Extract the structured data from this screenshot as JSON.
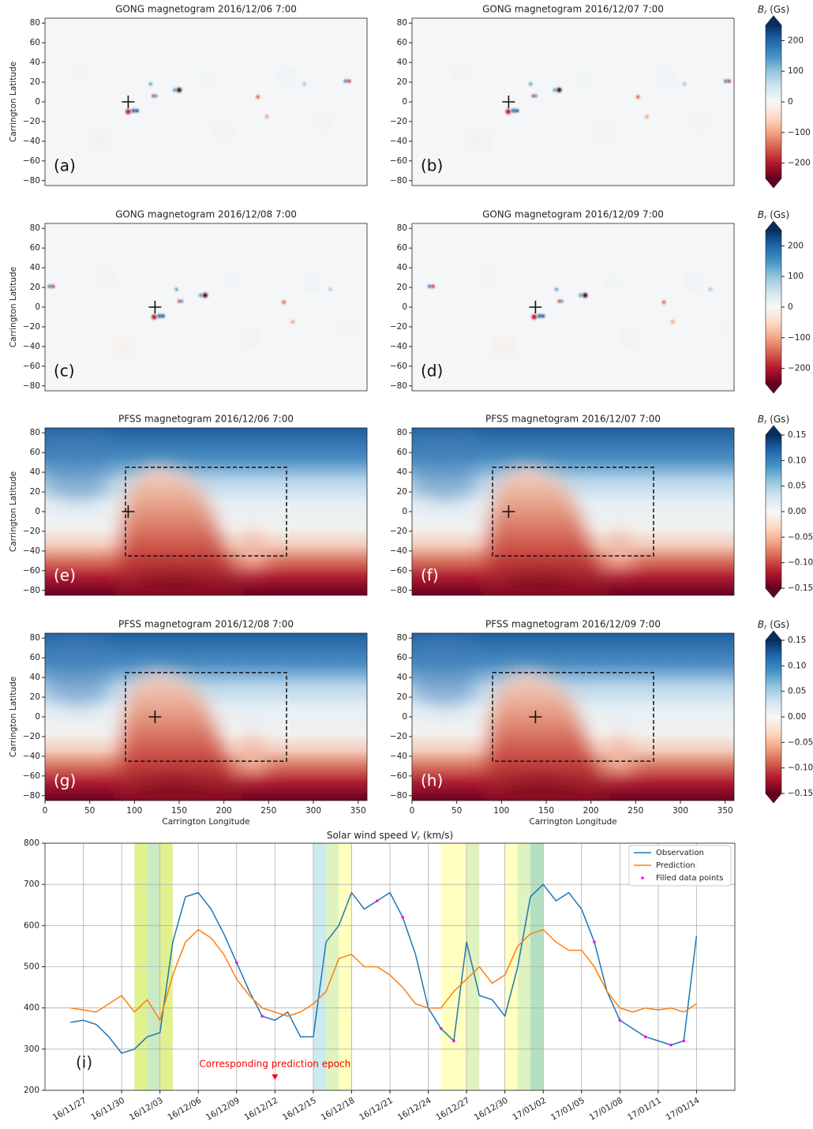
{
  "chart_data": [
    {
      "type": "heatmap",
      "map": "gong",
      "title": "GONG magnetogram 2016/12/06 7:00",
      "panel_label": "(a)",
      "ylabel": "Carrington Latitude",
      "xlim": [
        0,
        360
      ],
      "ylim": [
        -85,
        85
      ],
      "yticks": [
        {
          "value": -80,
          "label": "−80"
        },
        {
          "value": -60,
          "label": "−60"
        },
        {
          "value": -40,
          "label": "−40"
        },
        {
          "value": -20,
          "label": "−20"
        },
        0,
        20,
        40,
        60,
        80
      ],
      "marker": {
        "x": 93,
        "y": 0
      }
    },
    {
      "type": "heatmap",
      "map": "gong",
      "title": "GONG magnetogram 2016/12/07 7:00",
      "panel_label": "(b)",
      "xlim": [
        0,
        360
      ],
      "ylim": [
        -85,
        85
      ],
      "yticks": [
        {
          "value": -80,
          "label": "−80"
        },
        {
          "value": -60,
          "label": "−60"
        },
        {
          "value": -40,
          "label": "−40"
        },
        {
          "value": -20,
          "label": "−20"
        },
        0,
        20,
        40,
        60,
        80
      ],
      "marker": {
        "x": 108,
        "y": 0
      },
      "colorbar": {
        "label": [
          "B",
          "r",
          " (Gs)"
        ],
        "lim": [
          -250,
          250
        ],
        "ticks": [
          {
            "value": -200,
            "label": "−200"
          },
          {
            "value": -100,
            "label": "−100"
          },
          0,
          100,
          200
        ]
      }
    },
    {
      "type": "heatmap",
      "map": "gong",
      "title": "GONG magnetogram 2016/12/08 7:00",
      "panel_label": "(c)",
      "ylabel": "Carrington Latitude",
      "xlim": [
        0,
        360
      ],
      "ylim": [
        -85,
        85
      ],
      "yticks": [
        {
          "value": -80,
          "label": "−80"
        },
        {
          "value": -60,
          "label": "−60"
        },
        {
          "value": -40,
          "label": "−40"
        },
        {
          "value": -20,
          "label": "−20"
        },
        0,
        20,
        40,
        60,
        80
      ],
      "marker": {
        "x": 123,
        "y": 0
      }
    },
    {
      "type": "heatmap",
      "map": "gong",
      "title": "GONG magnetogram 2016/12/09 7:00",
      "panel_label": "(d)",
      "xlim": [
        0,
        360
      ],
      "ylim": [
        -85,
        85
      ],
      "yticks": [
        {
          "value": -80,
          "label": "−80"
        },
        {
          "value": -60,
          "label": "−60"
        },
        {
          "value": -40,
          "label": "−40"
        },
        {
          "value": -20,
          "label": "−20"
        },
        0,
        20,
        40,
        60,
        80
      ],
      "marker": {
        "x": 138,
        "y": 0
      },
      "colorbar": {
        "label": [
          "B",
          "r",
          " (Gs)"
        ],
        "lim": [
          -250,
          250
        ],
        "ticks": [
          {
            "value": -200,
            "label": "−200"
          },
          {
            "value": -100,
            "label": "−100"
          },
          0,
          100,
          200
        ]
      }
    },
    {
      "type": "heatmap",
      "map": "pfss",
      "title": "PFSS magnetogram 2016/12/06 7:00",
      "panel_label": "(e)",
      "ylabel": "Carrington Latitude",
      "xlim": [
        0,
        360
      ],
      "ylim": [
        -85,
        85
      ],
      "yticks": [
        {
          "value": -80,
          "label": "−80"
        },
        {
          "value": -60,
          "label": "−60"
        },
        {
          "value": -40,
          "label": "−40"
        },
        {
          "value": -20,
          "label": "−20"
        },
        0,
        20,
        40,
        60,
        80
      ],
      "marker": {
        "x": 93,
        "y": 0
      },
      "box": {
        "x": [
          90,
          270
        ],
        "y": [
          -45,
          45
        ]
      }
    },
    {
      "type": "heatmap",
      "map": "pfss",
      "title": "PFSS magnetogram 2016/12/07 7:00",
      "panel_label": "(f)",
      "xlim": [
        0,
        360
      ],
      "ylim": [
        -85,
        85
      ],
      "yticks": [
        {
          "value": -80,
          "label": "−80"
        },
        {
          "value": -60,
          "label": "−60"
        },
        {
          "value": -40,
          "label": "−40"
        },
        {
          "value": -20,
          "label": "−20"
        },
        0,
        20,
        40,
        60,
        80
      ],
      "marker": {
        "x": 108,
        "y": 0
      },
      "box": {
        "x": [
          90,
          270
        ],
        "y": [
          -45,
          45
        ]
      },
      "colorbar": {
        "label": [
          "B",
          "r",
          " (Gs)"
        ],
        "lim": [
          -0.15,
          0.15
        ],
        "ticks": [
          {
            "value": -0.15,
            "label": "−0.15"
          },
          {
            "value": -0.1,
            "label": "−0.10"
          },
          {
            "value": -0.05,
            "label": "−0.05"
          },
          {
            "value": 0,
            "label": "0.00"
          },
          0.05,
          {
            "value": 0.1,
            "label": "0.10"
          },
          0.15
        ]
      }
    },
    {
      "type": "heatmap",
      "map": "pfss",
      "title": "PFSS magnetogram 2016/12/08 7:00",
      "panel_label": "(g)",
      "ylabel": "Carrington Latitude",
      "xlabel": "Carrington Longitude",
      "xlim": [
        0,
        360
      ],
      "ylim": [
        -85,
        85
      ],
      "xticks": [
        0,
        50,
        100,
        150,
        200,
        250,
        300,
        350
      ],
      "yticks": [
        {
          "value": -80,
          "label": "−80"
        },
        {
          "value": -60,
          "label": "−60"
        },
        {
          "value": -40,
          "label": "−40"
        },
        {
          "value": -20,
          "label": "−20"
        },
        0,
        20,
        40,
        60,
        80
      ],
      "marker": {
        "x": 123,
        "y": 0
      },
      "box": {
        "x": [
          90,
          270
        ],
        "y": [
          -45,
          45
        ]
      }
    },
    {
      "type": "heatmap",
      "map": "pfss",
      "title": "PFSS magnetogram 2016/12/09 7:00",
      "panel_label": "(h)",
      "xlabel": "Carrington Longitude",
      "xlim": [
        0,
        360
      ],
      "ylim": [
        -85,
        85
      ],
      "xticks": [
        0,
        50,
        100,
        150,
        200,
        250,
        300,
        350
      ],
      "yticks": [
        {
          "value": -80,
          "label": "−80"
        },
        {
          "value": -60,
          "label": "−60"
        },
        {
          "value": -40,
          "label": "−40"
        },
        {
          "value": -20,
          "label": "−20"
        },
        0,
        20,
        40,
        60,
        80
      ],
      "marker": {
        "x": 138,
        "y": 0
      },
      "box": {
        "x": [
          90,
          270
        ],
        "y": [
          -45,
          45
        ]
      },
      "colorbar": {
        "label": [
          "B",
          "r",
          " (Gs)"
        ],
        "lim": [
          -0.15,
          0.15
        ],
        "ticks": [
          {
            "value": -0.15,
            "label": "−0.15"
          },
          {
            "value": -0.1,
            "label": "−0.10"
          },
          {
            "value": -0.05,
            "label": "−0.05"
          },
          {
            "value": 0,
            "label": "0.00"
          },
          0.05,
          {
            "value": 0.1,
            "label": "0.10"
          },
          0.15
        ]
      }
    },
    {
      "type": "line",
      "title": [
        "Solar wind speed ",
        "V",
        "r",
        " (km/s)"
      ],
      "panel_label": "(i)",
      "grid": true,
      "legend": "upper right",
      "xlim": [
        "16/11/24",
        "17/01/17"
      ],
      "ylim": [
        200,
        800
      ],
      "yticks": [
        200,
        300,
        400,
        500,
        600,
        700,
        800
      ],
      "xticks": [
        "16/11/27",
        "16/11/30",
        "16/12/03",
        "16/12/06",
        "16/12/09",
        "16/12/12",
        "16/12/15",
        "16/12/18",
        "16/12/21",
        "16/12/24",
        "16/12/27",
        "16/12/30",
        "17/01/02",
        "17/01/05",
        "17/01/08",
        "17/01/11",
        "17/01/14"
      ],
      "x": [
        "16/11/26",
        "16/11/27",
        "16/11/28",
        "16/11/29",
        "16/11/30",
        "16/12/01",
        "16/12/02",
        "16/12/03",
        "16/12/04",
        "16/12/05",
        "16/12/06",
        "16/12/07",
        "16/12/08",
        "16/12/09",
        "16/12/10",
        "16/12/11",
        "16/12/12",
        "16/12/13",
        "16/12/14",
        "16/12/15",
        "16/12/16",
        "16/12/17",
        "16/12/18",
        "16/12/19",
        "16/12/20",
        "16/12/21",
        "16/12/22",
        "16/12/23",
        "16/12/24",
        "16/12/25",
        "16/12/26",
        "16/12/27",
        "16/12/28",
        "16/12/29",
        "16/12/30",
        "16/12/31",
        "17/01/01",
        "17/01/02",
        "17/01/03",
        "17/01/04",
        "17/01/05",
        "17/01/06",
        "17/01/07",
        "17/01/08",
        "17/01/09",
        "17/01/10",
        "17/01/11",
        "17/01/12",
        "17/01/13",
        "17/01/14"
      ],
      "series": [
        {
          "name": "Observation",
          "color": "#1f77b4",
          "style": "line",
          "values": [
            365,
            370,
            360,
            330,
            290,
            300,
            330,
            340,
            560,
            670,
            680,
            640,
            580,
            510,
            440,
            380,
            370,
            390,
            330,
            330,
            560,
            600,
            680,
            640,
            660,
            680,
            620,
            530,
            400,
            350,
            320,
            560,
            430,
            420,
            380,
            500,
            670,
            700,
            660,
            680,
            640,
            560,
            440,
            370,
            350,
            330,
            320,
            310,
            320,
            575
          ]
        },
        {
          "name": "Prediction",
          "color": "#ff7f0e",
          "style": "line",
          "values": [
            400,
            395,
            390,
            410,
            430,
            390,
            420,
            370,
            480,
            560,
            590,
            570,
            530,
            470,
            430,
            400,
            390,
            380,
            390,
            410,
            440,
            520,
            530,
            500,
            500,
            480,
            450,
            410,
            400,
            400,
            440,
            470,
            500,
            460,
            480,
            550,
            580,
            590,
            560,
            540,
            540,
            500,
            440,
            400,
            390,
            400,
            395,
            400,
            390,
            410
          ]
        },
        {
          "name": "Filled data points",
          "color": "#ff00ff",
          "style": "points",
          "x": [
            "16/12/09",
            "16/12/11",
            "16/12/20",
            "16/12/22",
            "16/12/25",
            "16/12/26",
            "17/01/06",
            "17/01/08",
            "17/01/10",
            "17/01/12",
            "17/01/13"
          ],
          "values": [
            510,
            380,
            660,
            620,
            350,
            320,
            560,
            370,
            330,
            310,
            320
          ]
        }
      ],
      "spans": [
        {
          "start": "16/12/01",
          "end": "16/12/04",
          "color": "#ffff00"
        },
        {
          "start": "16/12/01",
          "end": "16/12/02",
          "color": "#7fcc00"
        },
        {
          "start": "16/12/02",
          "end": "16/12/03",
          "color": "#33aacc"
        },
        {
          "start": "16/12/03",
          "end": "16/12/04",
          "color": "#7fcc00"
        },
        {
          "start": "16/12/15",
          "end": "16/12/16",
          "color": "#33aacc"
        },
        {
          "start": "16/12/16",
          "end": "16/12/17",
          "color": "#7fcc00"
        },
        {
          "start": "16/12/17",
          "end": "16/12/18",
          "color": "#ffff00"
        },
        {
          "start": "16/12/25",
          "end": "16/12/27",
          "color": "#ffff00"
        },
        {
          "start": "16/12/27",
          "end": "16/12/28",
          "color": "#7fcc00"
        },
        {
          "start": "16/12/30",
          "end": "16/12/31",
          "color": "#ffff00"
        },
        {
          "start": "16/12/31",
          "end": "17/01/02",
          "color": "#7fcc00"
        },
        {
          "start": "17/01/01",
          "end": "17/01/02",
          "color": "#33aacc"
        }
      ],
      "annotation": {
        "text": "Corresponding prediction epoch",
        "x": "16/12/12",
        "y": 233,
        "color": "#ff0000"
      }
    }
  ]
}
